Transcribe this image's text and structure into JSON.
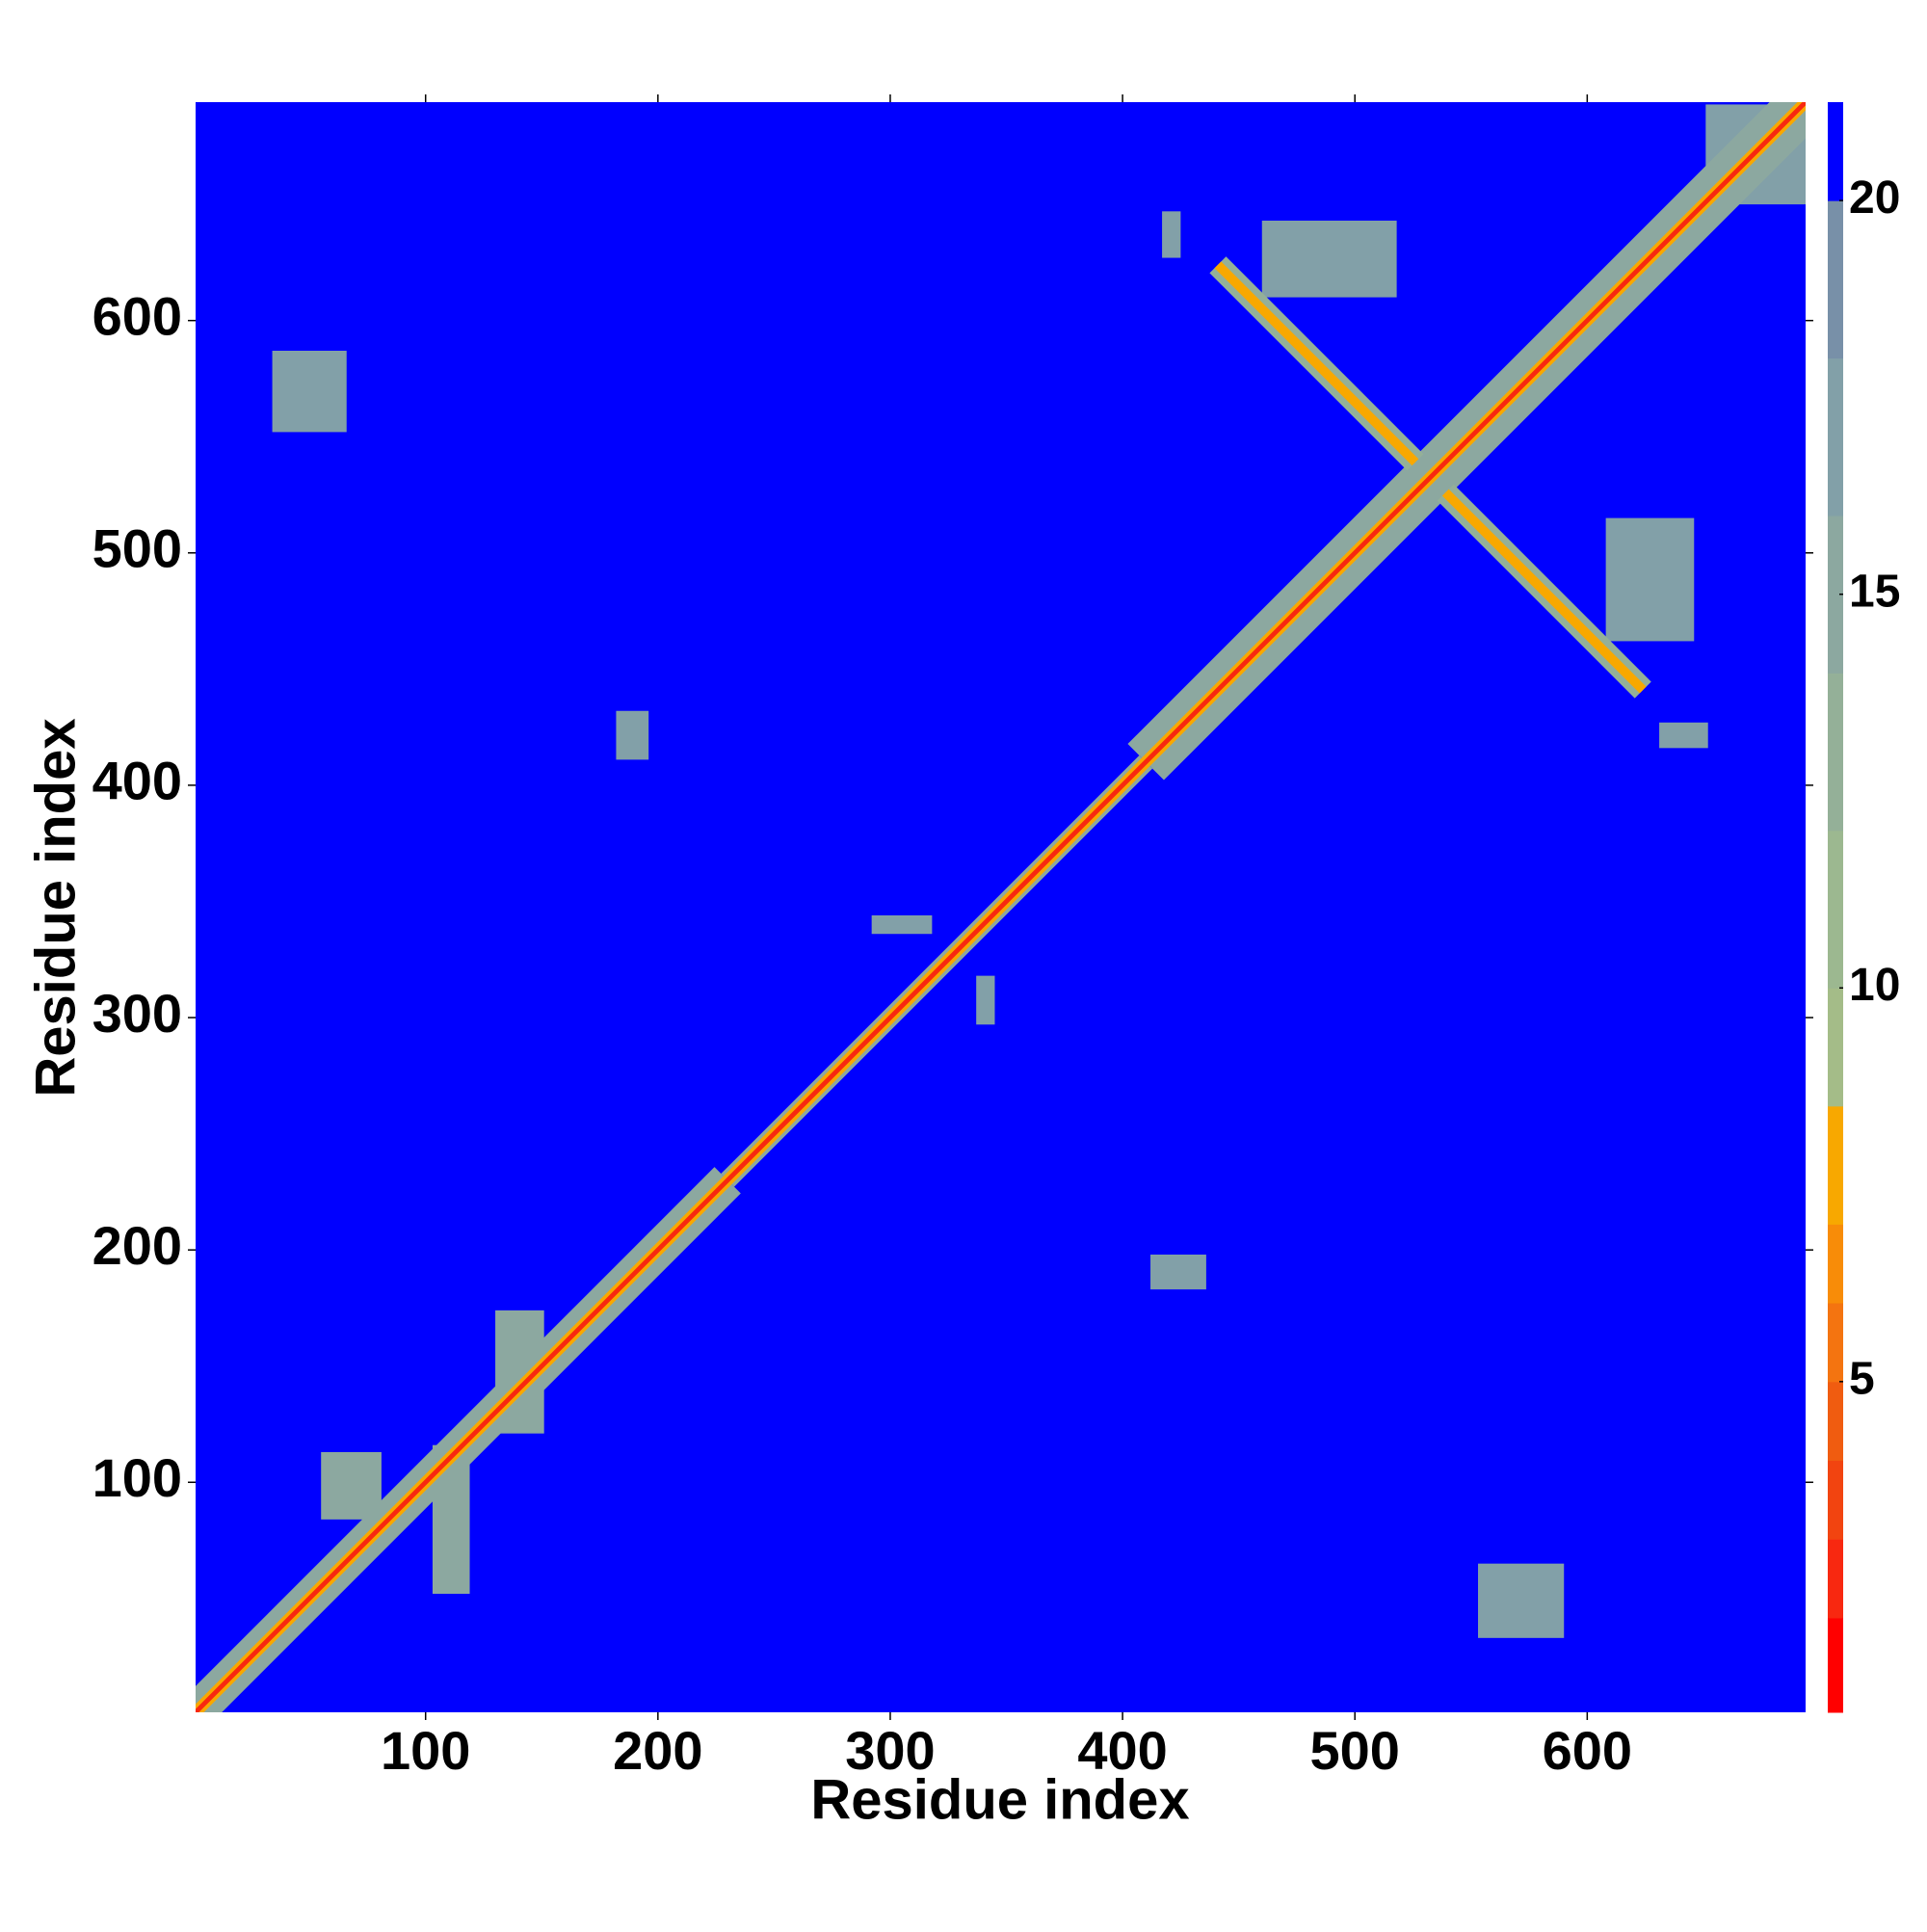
{
  "chart_data": {
    "type": "heatmap",
    "xlabel": "Residue index",
    "ylabel": "Residue index",
    "xlim": [
      1,
      694
    ],
    "ylim": [
      1,
      694
    ],
    "xticks": [
      100,
      200,
      300,
      400,
      500,
      600
    ],
    "yticks": [
      100,
      200,
      300,
      400,
      500,
      600
    ],
    "levels": [
      0.8,
      2,
      3,
      4,
      5,
      6,
      7,
      8.5,
      10,
      12,
      14,
      16,
      18,
      20,
      21.25
    ],
    "colors": [
      "#ff0000",
      "#f82810",
      "#f24410",
      "#f05c10",
      "#f47410",
      "#f88c08",
      "#f8a800",
      "#a4bc88",
      "#9cb890",
      "#94b098",
      "#8ca8a0",
      "#82a0a8",
      "#7890a8",
      "#0000ff"
    ],
    "colorbar_ticks": [
      5,
      10,
      15,
      20
    ],
    "background_value": 21,
    "patches": [
      {
        "x": [
          34,
          66
        ],
        "y": [
          552,
          587
        ],
        "value": 17
      },
      {
        "x": [
          553,
          590
        ],
        "y": [
          33,
          65
        ],
        "value": 17
      },
      {
        "x": [
          292,
          318
        ],
        "y": [
          336,
          344
        ],
        "value": 16
      },
      {
        "x": [
          337,
          345
        ],
        "y": [
          297,
          318
        ],
        "value": 16
      },
      {
        "x": [
          460,
          518
        ],
        "y": [
          610,
          643
        ],
        "value": 17
      },
      {
        "x": [
          608,
          646
        ],
        "y": [
          462,
          515
        ],
        "value": 17
      },
      {
        "x": [
          103,
          119
        ],
        "y": [
          52,
          116
        ],
        "value": 15
      },
      {
        "x": [
          55,
          81
        ],
        "y": [
          84,
          113
        ],
        "value": 15
      },
      {
        "x": [
          130,
          151
        ],
        "y": [
          121,
          174
        ],
        "value": 15
      },
      {
        "x": [
          412,
          436
        ],
        "y": [
          183,
          198
        ],
        "value": 17
      },
      {
        "x": [
          182,
          196
        ],
        "y": [
          411,
          432
        ],
        "value": 17
      },
      {
        "x": [
          417,
          425
        ],
        "y": [
          627,
          647
        ],
        "value": 17
      },
      {
        "x": [
          651,
          694
        ],
        "y": [
          650,
          693
        ],
        "value": 17
      },
      {
        "x": [
          631,
          652
        ],
        "y": [
          416,
          427
        ],
        "value": 17
      }
    ],
    "segments": [
      {
        "from": [
          1,
          1
        ],
        "to": [
          230,
          230
        ],
        "width": 16,
        "value": 14
      },
      {
        "from": [
          230,
          230
        ],
        "to": [
          410,
          410
        ],
        "width": 8,
        "value": 14
      },
      {
        "from": [
          410,
          410
        ],
        "to": [
          694,
          694
        ],
        "width": 22,
        "value": 14
      },
      {
        "from": [
          441,
          624
        ],
        "to": [
          526,
          539
        ],
        "width": 10,
        "value": 12
      },
      {
        "from": [
          539,
          526
        ],
        "to": [
          624,
          441
        ],
        "width": 10,
        "value": 12
      },
      {
        "from": [
          441,
          624
        ],
        "to": [
          526,
          539
        ],
        "width": 4,
        "value": 7
      },
      {
        "from": [
          539,
          526
        ],
        "to": [
          624,
          441
        ],
        "width": 4,
        "value": 7
      },
      {
        "from": [
          1,
          1
        ],
        "to": [
          694,
          694
        ],
        "width": 5,
        "value": 7
      },
      {
        "from": [
          1,
          1
        ],
        "to": [
          694,
          694
        ],
        "width": 2,
        "value": 2
      }
    ]
  }
}
